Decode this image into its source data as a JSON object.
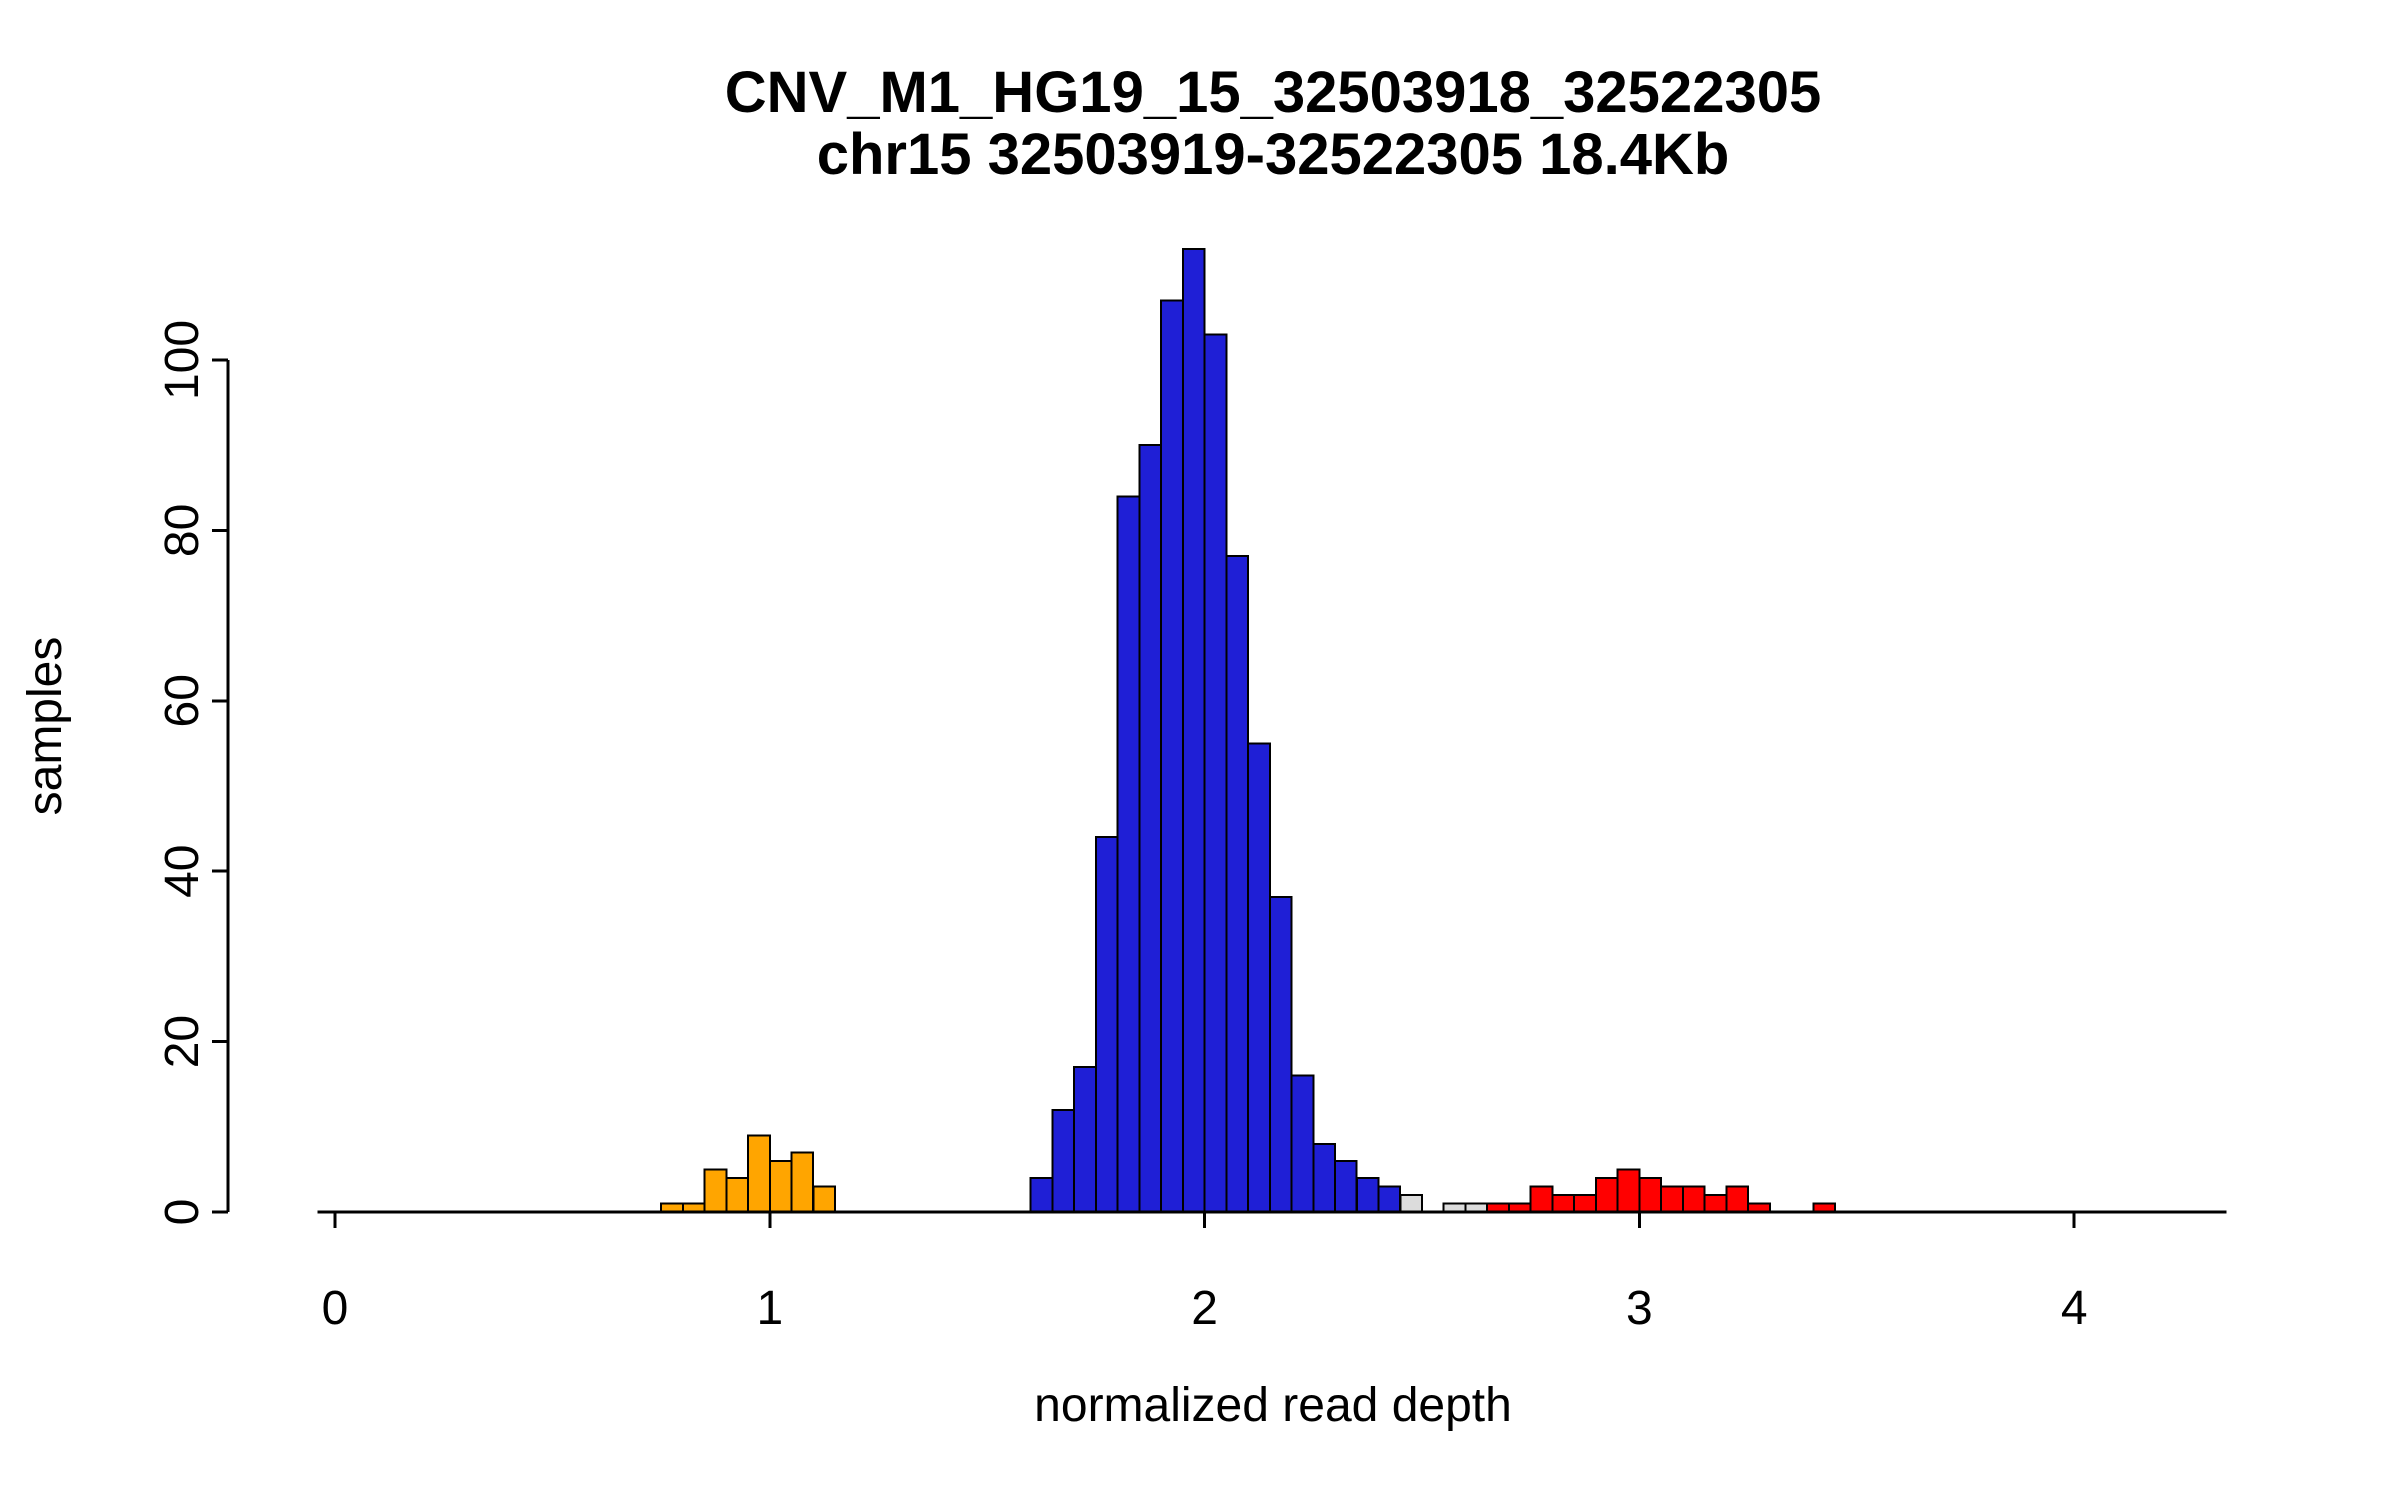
{
  "chart_data": {
    "type": "bar",
    "subtype": "histogram",
    "title_line1": "CNV_M1_HG19_15_32503918_32522305",
    "title_line2": "chr15 32503919-32522305 18.4Kb",
    "xlabel": "normalized read depth",
    "ylabel": "samples",
    "x_ticks": [
      0,
      1,
      2,
      3,
      4
    ],
    "y_ticks": [
      0,
      20,
      40,
      60,
      80,
      100
    ],
    "xlim": [
      -0.04,
      4.35
    ],
    "ylim": [
      0,
      113
    ],
    "bin_width": 0.05,
    "grid": false,
    "legend": "none",
    "colors": {
      "loss": "#FFA500",
      "neutral": "#1F1FD6",
      "unassigned": "#DCDCDC",
      "gain": "#FF0000"
    },
    "bins": [
      {
        "x": 0.75,
        "count": 1,
        "class": "loss"
      },
      {
        "x": 0.8,
        "count": 1,
        "class": "loss"
      },
      {
        "x": 0.85,
        "count": 5,
        "class": "loss"
      },
      {
        "x": 0.9,
        "count": 4,
        "class": "loss"
      },
      {
        "x": 0.95,
        "count": 9,
        "class": "loss"
      },
      {
        "x": 1.0,
        "count": 6,
        "class": "loss"
      },
      {
        "x": 1.05,
        "count": 7,
        "class": "loss"
      },
      {
        "x": 1.1,
        "count": 3,
        "class": "loss"
      },
      {
        "x": 1.6,
        "count": 4,
        "class": "neutral"
      },
      {
        "x": 1.65,
        "count": 12,
        "class": "neutral"
      },
      {
        "x": 1.7,
        "count": 17,
        "class": "neutral"
      },
      {
        "x": 1.75,
        "count": 44,
        "class": "neutral"
      },
      {
        "x": 1.8,
        "count": 84,
        "class": "neutral"
      },
      {
        "x": 1.85,
        "count": 90,
        "class": "neutral"
      },
      {
        "x": 1.9,
        "count": 107,
        "class": "neutral"
      },
      {
        "x": 1.95,
        "count": 113,
        "class": "neutral"
      },
      {
        "x": 2.0,
        "count": 103,
        "class": "neutral"
      },
      {
        "x": 2.05,
        "count": 77,
        "class": "neutral"
      },
      {
        "x": 2.1,
        "count": 55,
        "class": "neutral"
      },
      {
        "x": 2.15,
        "count": 37,
        "class": "neutral"
      },
      {
        "x": 2.2,
        "count": 16,
        "class": "neutral"
      },
      {
        "x": 2.25,
        "count": 8,
        "class": "neutral"
      },
      {
        "x": 2.3,
        "count": 6,
        "class": "neutral"
      },
      {
        "x": 2.35,
        "count": 4,
        "class": "neutral"
      },
      {
        "x": 2.4,
        "count": 3,
        "class": "neutral"
      },
      {
        "x": 2.45,
        "count": 2,
        "class": "unassigned"
      },
      {
        "x": 2.55,
        "count": 1,
        "class": "unassigned"
      },
      {
        "x": 2.6,
        "count": 1,
        "class": "unassigned"
      },
      {
        "x": 2.65,
        "count": 1,
        "class": "gain"
      },
      {
        "x": 2.7,
        "count": 1,
        "class": "gain"
      },
      {
        "x": 2.75,
        "count": 3,
        "class": "gain"
      },
      {
        "x": 2.8,
        "count": 2,
        "class": "gain"
      },
      {
        "x": 2.85,
        "count": 2,
        "class": "gain"
      },
      {
        "x": 2.9,
        "count": 4,
        "class": "gain"
      },
      {
        "x": 2.95,
        "count": 5,
        "class": "gain"
      },
      {
        "x": 3.0,
        "count": 4,
        "class": "gain"
      },
      {
        "x": 3.05,
        "count": 3,
        "class": "gain"
      },
      {
        "x": 3.1,
        "count": 3,
        "class": "gain"
      },
      {
        "x": 3.15,
        "count": 2,
        "class": "gain"
      },
      {
        "x": 3.2,
        "count": 3,
        "class": "gain"
      },
      {
        "x": 3.25,
        "count": 1,
        "class": "gain"
      },
      {
        "x": 3.4,
        "count": 1,
        "class": "gain"
      }
    ]
  },
  "figure": {
    "background": "#FFFFFF",
    "axis_color": "#000000"
  }
}
